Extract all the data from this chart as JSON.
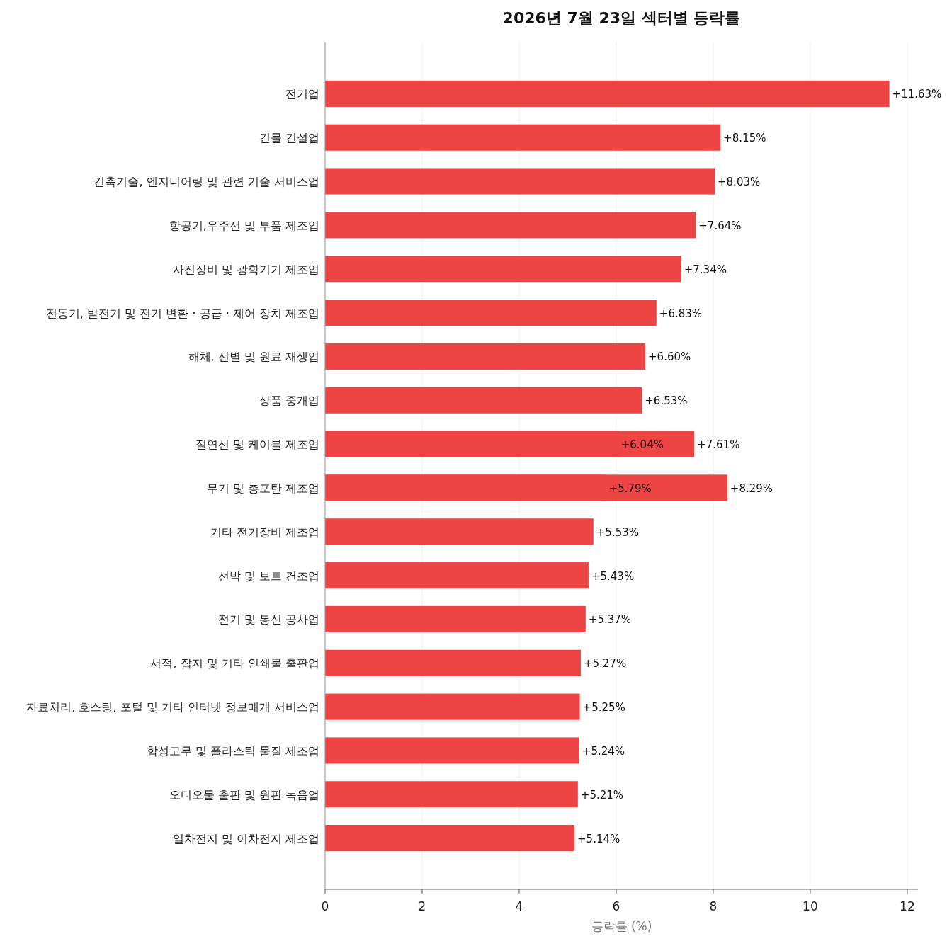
{
  "chart_data": {
    "type": "bar",
    "orientation": "horizontal",
    "title": "2026년 7월 23일 섹터별 등락률",
    "xlabel": "등락률 (%)",
    "categories": [
      "전기업",
      "건물 건설업",
      "건축기술, 엔지니어링 및 관련 기술 서비스업",
      "항공기,우주선 및 부품 제조업",
      "사진장비 및 광학기기 제조업",
      "전동기, 발전기 및 전기 변환 · 공급 · 제어 장치 제조업",
      "해체, 선별 및 원료 재생업",
      "상품 중개업",
      "절연선 및 케이블 제조업",
      "무기 및 총포탄 제조업",
      "기타 전기장비 제조업",
      "선박 및 보트 건조업",
      "전기 및 통신 공사업",
      "서적, 잡지 및 기타 인쇄물 출판업",
      "자료처리, 호스팅, 포털 및 기타 인터넷 정보매개 서비스업",
      "합성고무 및 플라스틱 물질 제조업",
      "오디오물 출판 및 원판 녹음업",
      "일차전지 및 이차전지 제조업"
    ],
    "series": [
      {
        "color": "#ef4444",
        "values": [
          11.63,
          8.15,
          8.03,
          7.64,
          7.34,
          6.83,
          6.6,
          6.53,
          7.61,
          8.29,
          5.53,
          5.43,
          5.37,
          5.27,
          5.25,
          5.24,
          5.21,
          5.14
        ],
        "value_labels": [
          "+11.63%",
          "+8.15%",
          "+8.03%",
          "+7.64%",
          "+7.34%",
          "+6.83%",
          "+6.60%",
          "+6.53%",
          "+7.61%",
          "+8.29%",
          "+5.53%",
          "+5.43%",
          "+5.37%",
          "+5.27%",
          "+5.25%",
          "+5.24%",
          "+5.21%",
          "+5.14%"
        ]
      },
      {
        "color": "#ef4444",
        "values": [
          null,
          null,
          null,
          null,
          null,
          null,
          null,
          null,
          6.04,
          5.79,
          null,
          null,
          null,
          null,
          null,
          null,
          null,
          null
        ],
        "value_labels": [
          null,
          null,
          null,
          null,
          null,
          null,
          null,
          null,
          "+6.04%",
          "+5.79%",
          null,
          null,
          null,
          null,
          null,
          null,
          null,
          null
        ]
      }
    ],
    "xlim": [
      0,
      12.22
    ],
    "xticks": [
      0,
      2,
      4,
      6,
      8,
      10,
      12
    ],
    "grid": "x"
  }
}
